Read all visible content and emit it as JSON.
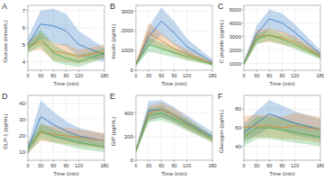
{
  "chart_data": [
    {
      "type": "line",
      "label": "A",
      "xlabel": "Time (min)",
      "ylabel": "Glucose (mmol/L)",
      "grid": true,
      "x": [
        0,
        30,
        60,
        90,
        120,
        180
      ],
      "xlim": [
        0,
        180
      ],
      "xticks": [
        0,
        30,
        60,
        90,
        120,
        180
      ],
      "ylim": [
        3.5,
        7.3
      ],
      "yticks": [
        4,
        5,
        6,
        7
      ],
      "series": [
        {
          "color": "#3a7dc4",
          "values": [
            5.0,
            6.2,
            6.1,
            5.8,
            5.0,
            4.4
          ],
          "lower": [
            4.6,
            5.4,
            5.1,
            4.9,
            4.3,
            4.0
          ],
          "upper": [
            5.4,
            7.0,
            7.1,
            6.8,
            5.8,
            4.8
          ]
        },
        {
          "color": "#e08a3c",
          "values": [
            4.9,
            5.2,
            4.6,
            4.5,
            4.3,
            4.6
          ],
          "lower": [
            4.6,
            4.7,
            4.1,
            4.0,
            3.9,
            4.2
          ],
          "upper": [
            5.2,
            5.7,
            5.1,
            5.0,
            4.7,
            5.0
          ]
        },
        {
          "color": "#4caf50",
          "values": [
            4.8,
            5.4,
            4.5,
            4.2,
            4.0,
            4.5
          ],
          "lower": [
            4.5,
            4.9,
            4.0,
            3.8,
            3.7,
            4.2
          ],
          "upper": [
            5.1,
            5.9,
            5.0,
            4.6,
            4.4,
            4.8
          ]
        }
      ]
    },
    {
      "type": "line",
      "label": "B",
      "xlabel": "Time (min)",
      "ylabel": "Insulin (pg/mL)",
      "grid": true,
      "x": [
        0,
        30,
        60,
        90,
        120,
        180
      ],
      "xlim": [
        0,
        180
      ],
      "xticks": [
        0,
        30,
        60,
        90,
        120,
        180
      ],
      "ylim": [
        0,
        3300
      ],
      "yticks": [
        0,
        1000,
        2000,
        3000
      ],
      "series": [
        {
          "color": "#3a7dc4",
          "values": [
            300,
            1700,
            2500,
            1900,
            1200,
            400
          ],
          "lower": [
            200,
            1200,
            1800,
            1300,
            800,
            250
          ],
          "upper": [
            400,
            2200,
            3200,
            2500,
            1600,
            550
          ]
        },
        {
          "color": "#e08a3c",
          "values": [
            300,
            1900,
            1500,
            1100,
            800,
            350
          ],
          "lower": [
            200,
            1400,
            1100,
            800,
            550,
            250
          ],
          "upper": [
            400,
            2400,
            1900,
            1400,
            1050,
            450
          ]
        },
        {
          "color": "#4caf50",
          "values": [
            300,
            1300,
            1100,
            900,
            700,
            300
          ],
          "lower": [
            200,
            950,
            800,
            650,
            500,
            220
          ],
          "upper": [
            400,
            1650,
            1400,
            1150,
            900,
            380
          ]
        }
      ]
    },
    {
      "type": "line",
      "label": "C",
      "xlabel": "Time (min)",
      "ylabel": "C peptide (pg/mL)",
      "grid": true,
      "x": [
        0,
        30,
        60,
        90,
        120,
        180
      ],
      "xlim": [
        0,
        180
      ],
      "xticks": [
        0,
        30,
        60,
        90,
        120,
        180
      ],
      "ylim": [
        500,
        5300
      ],
      "yticks": [
        1000,
        2000,
        3000,
        4000,
        5000
      ],
      "series": [
        {
          "color": "#3a7dc4",
          "values": [
            1000,
            3200,
            4300,
            4000,
            3300,
            1700
          ],
          "lower": [
            850,
            2600,
            3500,
            3300,
            2700,
            1400
          ],
          "upper": [
            1150,
            3800,
            5000,
            4700,
            3900,
            2000
          ]
        },
        {
          "color": "#e08a3c",
          "values": [
            1000,
            3000,
            3100,
            2900,
            2600,
            1600
          ],
          "lower": [
            850,
            2500,
            2600,
            2400,
            2200,
            1350
          ],
          "upper": [
            1150,
            3500,
            3600,
            3400,
            3000,
            1850
          ]
        },
        {
          "color": "#4caf50",
          "values": [
            1000,
            2800,
            3100,
            2800,
            2400,
            1500
          ],
          "lower": [
            850,
            2400,
            2700,
            2400,
            2050,
            1300
          ],
          "upper": [
            1150,
            3200,
            3500,
            3200,
            2750,
            1700
          ]
        }
      ]
    },
    {
      "type": "line",
      "label": "D",
      "xlabel": "Time (min)",
      "ylabel": "GLP-1 (pg/mL)",
      "grid": true,
      "x": [
        0,
        30,
        60,
        90,
        120,
        180
      ],
      "xlim": [
        0,
        180
      ],
      "xticks": [
        0,
        30,
        60,
        90,
        120,
        180
      ],
      "ylim": [
        5,
        45
      ],
      "yticks": [
        10,
        20,
        30,
        40
      ],
      "series": [
        {
          "color": "#3a7dc4",
          "values": [
            12,
            32,
            27,
            23,
            20,
            17
          ],
          "lower": [
            9,
            22,
            19,
            17,
            15,
            13
          ],
          "upper": [
            15,
            42,
            35,
            29,
            25,
            21
          ]
        },
        {
          "color": "#e08a3c",
          "values": [
            12,
            22,
            21,
            20,
            19,
            17
          ],
          "lower": [
            9,
            17,
            16,
            15,
            14,
            12
          ],
          "upper": [
            15,
            27,
            26,
            25,
            24,
            22
          ]
        },
        {
          "color": "#4caf50",
          "values": [
            12,
            23,
            20,
            18,
            16,
            13
          ],
          "lower": [
            9,
            18,
            16,
            14,
            12,
            10
          ],
          "upper": [
            15,
            28,
            24,
            22,
            20,
            16
          ]
        }
      ]
    },
    {
      "type": "line",
      "label": "E",
      "xlabel": "Time (min)",
      "ylabel": "GIP (pg/mL)",
      "grid": true,
      "x": [
        0,
        30,
        60,
        90,
        120,
        180
      ],
      "xlim": [
        0,
        180
      ],
      "xticks": [
        0,
        30,
        60,
        90,
        120,
        180
      ],
      "ylim": [
        0,
        550
      ],
      "yticks": [
        0,
        200,
        400
      ],
      "series": [
        {
          "color": "#3a7dc4",
          "values": [
            80,
            420,
            430,
            380,
            320,
            200
          ],
          "lower": [
            60,
            340,
            360,
            320,
            270,
            170
          ],
          "upper": [
            100,
            500,
            510,
            450,
            380,
            240
          ]
        },
        {
          "color": "#e08a3c",
          "values": [
            80,
            400,
            430,
            380,
            310,
            180
          ],
          "lower": [
            60,
            340,
            370,
            320,
            260,
            150
          ],
          "upper": [
            100,
            460,
            490,
            440,
            360,
            210
          ]
        },
        {
          "color": "#4caf50",
          "values": [
            80,
            380,
            400,
            350,
            300,
            180
          ],
          "lower": [
            60,
            320,
            340,
            300,
            250,
            150
          ],
          "upper": [
            100,
            440,
            460,
            400,
            350,
            210
          ]
        }
      ]
    },
    {
      "type": "line",
      "label": "F",
      "xlabel": "Time (min)",
      "ylabel": "Glucagon (pg/mL)",
      "grid": true,
      "x": [
        0,
        30,
        60,
        90,
        120,
        180
      ],
      "xlim": [
        0,
        180
      ],
      "xticks": [
        0,
        30,
        60,
        90,
        120,
        180
      ],
      "ylim": [
        25,
        95
      ],
      "yticks": [
        40,
        60,
        80
      ],
      "series": [
        {
          "color": "#3a7dc4",
          "values": [
            55,
            65,
            75,
            70,
            65,
            58
          ],
          "lower": [
            45,
            52,
            60,
            56,
            52,
            47
          ],
          "upper": [
            65,
            78,
            90,
            84,
            78,
            69
          ]
        },
        {
          "color": "#e08a3c",
          "values": [
            60,
            62,
            62,
            60,
            62,
            58
          ],
          "lower": [
            47,
            50,
            50,
            48,
            48,
            44
          ],
          "upper": [
            73,
            74,
            74,
            72,
            76,
            72
          ]
        },
        {
          "color": "#4caf50",
          "values": [
            50,
            60,
            60,
            58,
            55,
            50
          ],
          "lower": [
            40,
            48,
            48,
            46,
            44,
            40
          ],
          "upper": [
            60,
            72,
            72,
            70,
            66,
            60
          ]
        }
      ]
    }
  ]
}
